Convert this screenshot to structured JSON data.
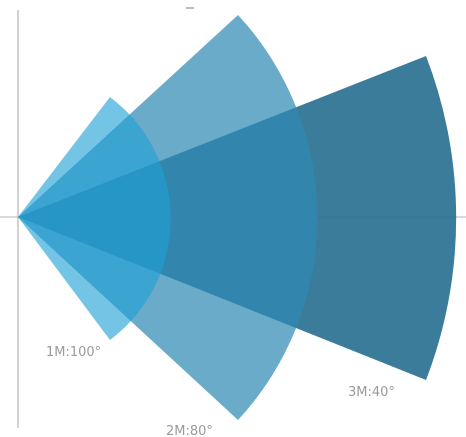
{
  "diagram": {
    "colors": {
      "background": "#ffffff",
      "axis": "#b5b5b5",
      "top_tick": "#8f8f8f",
      "label": "#9a9a9a"
    },
    "sectors": [
      {
        "label": "3M:40°",
        "color": "#2b7192",
        "opacity": 0.92
      },
      {
        "label": "2M:80°",
        "color": "#2f8ab4",
        "opacity": 0.72
      },
      {
        "label": "1M:100°",
        "color": "#1f9fd6",
        "opacity": 0.62
      }
    ]
  }
}
